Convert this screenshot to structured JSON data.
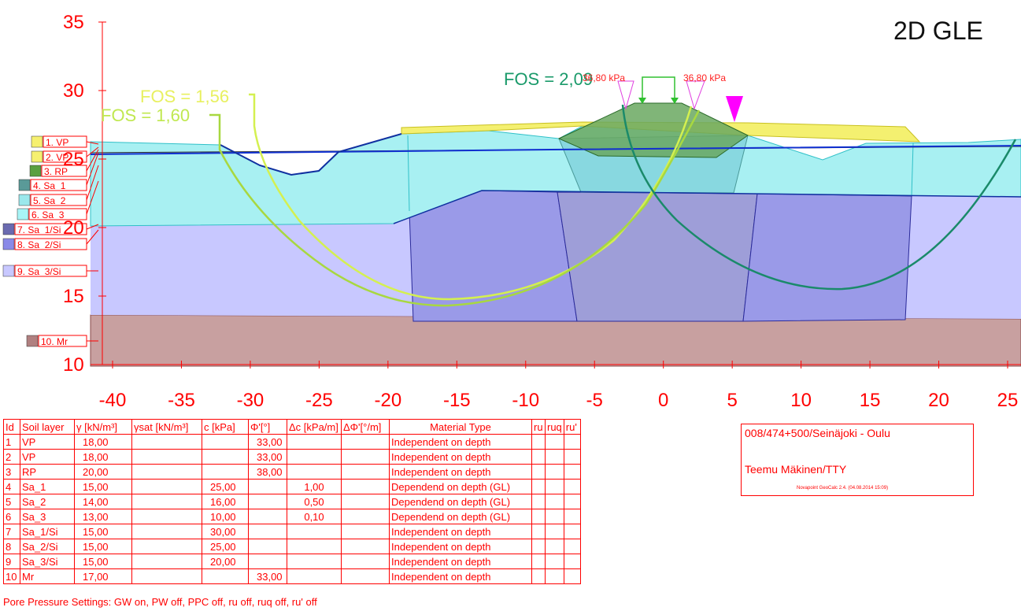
{
  "view_title": "2D GLE",
  "axes": {
    "y_ticks": [
      "35",
      "30",
      "25",
      "20",
      "15",
      "10"
    ],
    "x_ticks": [
      "-40",
      "-35",
      "-30",
      "-25",
      "-20",
      "-15",
      "-10",
      "-5",
      "0",
      "5",
      "10",
      "15",
      "20",
      "25"
    ],
    "xlim": [
      -41,
      26
    ],
    "ylim": [
      10,
      35
    ]
  },
  "results": {
    "fos_labels": [
      "FOS = 1,56",
      "FOS = 1,60",
      "FOS = 2,09"
    ],
    "fos_colors": [
      "#d4f050",
      "#b0e030",
      "#1a9a6a"
    ]
  },
  "loads": {
    "left_value": "36,80 kPa",
    "right_value": "36,80 kPa"
  },
  "layer_legend": [
    {
      "label": "1. VP",
      "color": "#f6f070"
    },
    {
      "label": "2. VP",
      "color": "#f6f070"
    },
    {
      "label": "3. RP",
      "color": "#5aa040"
    },
    {
      "label": "4. Sa_1",
      "color": "#5a9a98"
    },
    {
      "label": "5. Sa_2",
      "color": "#9ae8ec"
    },
    {
      "label": "6. Sa_3",
      "color": "#a8f4f6"
    },
    {
      "label": "7. Sa_1/Si",
      "color": "#6a6ab0"
    },
    {
      "label": "8. Sa_2/Si",
      "color": "#8a8ae8"
    },
    {
      "label": "9. Sa_3/Si",
      "color": "#c8c8ff"
    },
    {
      "label": "10. Mr",
      "color": "#b08080"
    }
  ],
  "soil_table": {
    "headers": [
      "Id",
      "Soil layer",
      "γ [kN/m³]",
      "γsat [kN/m³]",
      "c [kPa]",
      "Φ'[°]",
      "Δc [kPa/m]",
      "ΔΦ'[°/m]",
      "Material Type",
      "ru",
      "ruq",
      "ru'"
    ],
    "rows": [
      [
        "1",
        "VP",
        "18,00",
        "",
        "",
        "33,00",
        "",
        "",
        "Independent on depth",
        "",
        "",
        ""
      ],
      [
        "2",
        "VP",
        "18,00",
        "",
        "",
        "33,00",
        "",
        "",
        "Independent on depth",
        "",
        "",
        ""
      ],
      [
        "3",
        "RP",
        "20,00",
        "",
        "",
        "38,00",
        "",
        "",
        "Independent on depth",
        "",
        "",
        ""
      ],
      [
        "4",
        "Sa_1",
        "15,00",
        "",
        "25,00",
        "",
        "1,00",
        "",
        "Dependend on depth (GL)",
        "",
        "",
        ""
      ],
      [
        "5",
        "Sa_2",
        "14,00",
        "",
        "16,00",
        "",
        "0,50",
        "",
        "Dependend on depth (GL)",
        "",
        "",
        ""
      ],
      [
        "6",
        "Sa_3",
        "13,00",
        "",
        "10,00",
        "",
        "0,10",
        "",
        "Dependend on depth (GL)",
        "",
        "",
        ""
      ],
      [
        "7",
        "Sa_1/Si",
        "15,00",
        "",
        "30,00",
        "",
        "",
        "",
        "Independent on depth",
        "",
        "",
        ""
      ],
      [
        "8",
        "Sa_2/Si",
        "15,00",
        "",
        "25,00",
        "",
        "",
        "",
        "Independent on depth",
        "",
        "",
        ""
      ],
      [
        "9",
        "Sa_3/Si",
        "15,00",
        "",
        "20,00",
        "",
        "",
        "",
        "Independent on depth",
        "",
        "",
        ""
      ],
      [
        "10",
        "Mr",
        "17,00",
        "",
        "",
        "33,00",
        "",
        "",
        "Independent on depth",
        "",
        "",
        ""
      ]
    ]
  },
  "pore_pressure_note": "Pore Pressure Settings: GW on, PW off, PPC off, ru off, ruq off, ru' off",
  "project": {
    "line1": "008/474+500/Seinäjoki - Oulu",
    "line2": "Teemu Mäkinen/TTY",
    "line3": "Novapoint GeoCalc 2.4. (04.08.2014 15:09)"
  }
}
